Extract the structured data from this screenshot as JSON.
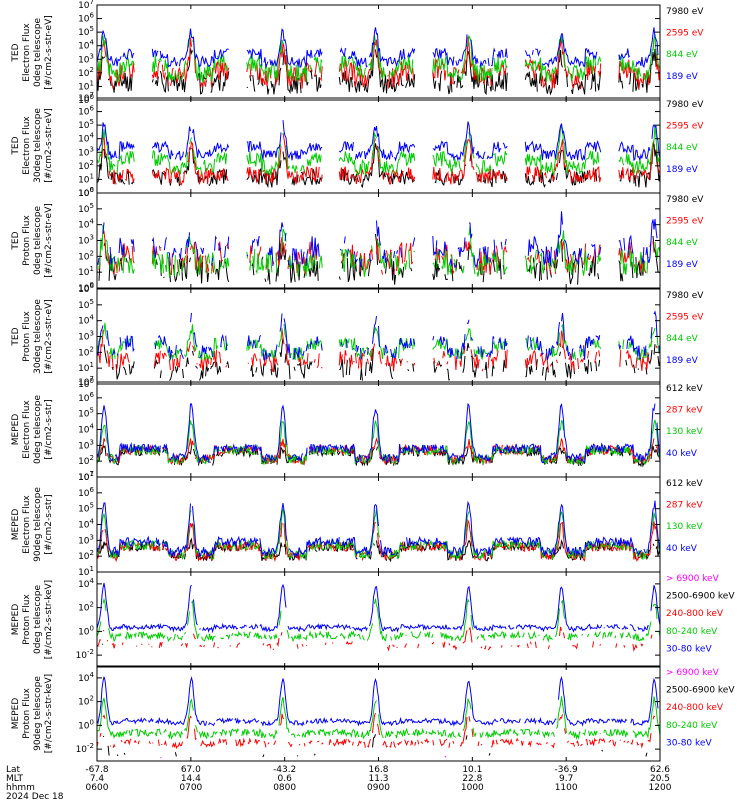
{
  "chart_data": [
    {
      "type": "line",
      "ylabel": [
        "TED",
        "Electron Flux",
        "0deg telescope",
        "[#/cm2-s-str-eV]"
      ],
      "yticks": [
        "10^0",
        "10^1",
        "10^2",
        "10^3",
        "10^4",
        "10^5",
        "10^6",
        "10^7"
      ],
      "ylim_exp": [
        0,
        7
      ],
      "log_y": true,
      "series": [
        {
          "name": "7980 eV",
          "color": "#000000",
          "seed": 11,
          "base": 1.2,
          "peak": 3.2,
          "noise": 0.8,
          "gap": 0.15
        },
        {
          "name": "2595 eV",
          "color": "#ff0000",
          "seed": 12,
          "base": 1.6,
          "peak": 4.0,
          "noise": 0.8,
          "gap": 0.1
        },
        {
          "name": "844 eV",
          "color": "#00cc00",
          "seed": 13,
          "base": 2.0,
          "peak": 4.6,
          "noise": 0.7,
          "gap": 0.05
        },
        {
          "name": "189 eV",
          "color": "#0000ff",
          "seed": 14,
          "base": 2.8,
          "peak": 5.0,
          "noise": 0.4,
          "gap": 0.05
        }
      ]
    },
    {
      "type": "line",
      "ylabel": [
        "TED",
        "Electron Flux",
        "30deg telescope",
        "[#/cm2-s-str-eV]"
      ],
      "yticks": [
        "10^0",
        "10^1",
        "10^2",
        "10^3",
        "10^4",
        "10^5",
        "10^6",
        "10^7"
      ],
      "ylim_exp": [
        0,
        7
      ],
      "log_y": true,
      "series": [
        {
          "name": "7980 eV",
          "color": "#000000",
          "seed": 21,
          "base": 1.0,
          "peak": 3.2,
          "noise": 0.6,
          "gap": 0.1
        },
        {
          "name": "2595 eV",
          "color": "#ff0000",
          "seed": 22,
          "base": 1.2,
          "peak": 3.9,
          "noise": 0.6,
          "gap": 0.08
        },
        {
          "name": "844 eV",
          "color": "#00cc00",
          "seed": 23,
          "base": 1.9,
          "peak": 4.5,
          "noise": 0.6,
          "gap": 0.05
        },
        {
          "name": "189 eV",
          "color": "#0000ff",
          "seed": 24,
          "base": 2.8,
          "peak": 5.0,
          "noise": 0.4,
          "gap": 0.03
        }
      ]
    },
    {
      "type": "line",
      "ylabel": [
        "TED",
        "Proton Flux",
        "0deg telescope",
        "[#/cm2-s-str-eV]"
      ],
      "yticks": [
        "10^0",
        "10^1",
        "10^2",
        "10^3",
        "10^4",
        "10^5",
        "10^6"
      ],
      "ylim_exp": [
        0,
        6
      ],
      "log_y": true,
      "series": [
        {
          "name": "7980 eV",
          "color": "#000000",
          "seed": 31,
          "base": 1.1,
          "peak": 2.6,
          "noise": 0.9,
          "gap": 0.3
        },
        {
          "name": "2595 eV",
          "color": "#ff0000",
          "seed": 32,
          "base": 1.6,
          "peak": 3.0,
          "noise": 0.8,
          "gap": 0.25
        },
        {
          "name": "844 eV",
          "color": "#00cc00",
          "seed": 33,
          "base": 1.5,
          "peak": 3.4,
          "noise": 0.8,
          "gap": 0.2
        },
        {
          "name": "189 eV",
          "color": "#0000ff",
          "seed": 34,
          "base": 2.0,
          "peak": 4.2,
          "noise": 0.7,
          "gap": 0.3
        }
      ]
    },
    {
      "type": "line",
      "ylabel": [
        "TED",
        "Proton Flux",
        "30deg telescope",
        "[#/cm2-s-str-eV]"
      ],
      "yticks": [
        "10^0",
        "10^1",
        "10^2",
        "10^3",
        "10^4",
        "10^5",
        "10^6"
      ],
      "ylim_exp": [
        0,
        6
      ],
      "log_y": true,
      "series": [
        {
          "name": "7980 eV",
          "color": "#000000",
          "seed": 41,
          "base": 0.8,
          "peak": 2.4,
          "noise": 0.6,
          "gap": 0.4
        },
        {
          "name": "2595 eV",
          "color": "#ff0000",
          "seed": 42,
          "base": 1.4,
          "peak": 3.0,
          "noise": 0.6,
          "gap": 0.3
        },
        {
          "name": "844 eV",
          "color": "#00cc00",
          "seed": 43,
          "base": 1.9,
          "peak": 3.6,
          "noise": 0.4,
          "gap": 0.1
        },
        {
          "name": "189 eV",
          "color": "#0000ff",
          "seed": 44,
          "base": 2.0,
          "peak": 4.2,
          "noise": 0.5,
          "gap": 0.25
        }
      ]
    },
    {
      "type": "line",
      "ylabel": [
        "MEPED",
        "Electron Flux",
        "0deg telescope",
        "[#/cm2-s-str]"
      ],
      "yticks": [
        "10^1",
        "10^2",
        "10^3",
        "10^4",
        "10^5",
        "10^6",
        "10^7"
      ],
      "ylim_exp": [
        1,
        7
      ],
      "log_y": true,
      "series": [
        {
          "name": "612 keV",
          "color": "#000000",
          "seed": 51,
          "base": 2.0,
          "peak": 2.8,
          "noise": 0.3,
          "gap": 0.1
        },
        {
          "name": "287 keV",
          "color": "#ff0000",
          "seed": 52,
          "base": 2.1,
          "peak": 3.2,
          "noise": 0.3,
          "gap": 0.05
        },
        {
          "name": "130 keV",
          "color": "#00cc00",
          "seed": 53,
          "base": 2.1,
          "peak": 4.4,
          "noise": 0.3,
          "gap": 0.05
        },
        {
          "name": "40 keV",
          "color": "#0000ff",
          "seed": 54,
          "base": 2.2,
          "peak": 5.5,
          "noise": 0.3,
          "gap": 0.05
        }
      ]
    },
    {
      "type": "line",
      "ylabel": [
        "MEPED",
        "Electron Flux",
        "90deg telescope",
        "[#/cm2-s-str]"
      ],
      "yticks": [
        "10^1",
        "10^2",
        "10^3",
        "10^4",
        "10^5",
        "10^6",
        "10^7"
      ],
      "ylim_exp": [
        1,
        7
      ],
      "log_y": true,
      "series": [
        {
          "name": "612 keV",
          "color": "#000000",
          "seed": 61,
          "base": 2.0,
          "peak": 2.8,
          "noise": 0.3,
          "gap": 0.1
        },
        {
          "name": "287 keV",
          "color": "#ff0000",
          "seed": 62,
          "base": 2.0,
          "peak": 4.0,
          "noise": 0.3,
          "gap": 0.05
        },
        {
          "name": "130 keV",
          "color": "#00cc00",
          "seed": 63,
          "base": 2.1,
          "peak": 4.8,
          "noise": 0.3,
          "gap": 0.05
        },
        {
          "name": "40 keV",
          "color": "#0000ff",
          "seed": 64,
          "base": 2.3,
          "peak": 5.3,
          "noise": 0.3,
          "gap": 0.03
        }
      ]
    },
    {
      "type": "line",
      "ylabel": [
        "MEPED",
        "Proton Flux",
        "0deg telescope",
        "[#/cm2-s-str-keV]"
      ],
      "yticks": [
        "10^-2",
        "10^0",
        "10^2",
        "10^4"
      ],
      "ylim_exp": [
        -3,
        5
      ],
      "log_y": true,
      "series": [
        {
          "name": "> 6900 keV",
          "color": "#ff00ff",
          "seed": 71,
          "base": -2.8,
          "peak": -1.8,
          "noise": 0.2,
          "gap": 0.97
        },
        {
          "name": "2500-6900 keV",
          "color": "#000000",
          "seed": 72,
          "base": -2.5,
          "peak": -0.8,
          "noise": 0.3,
          "gap": 0.93
        },
        {
          "name": "240-800 keV",
          "color": "#ff0000",
          "seed": 73,
          "base": -1.3,
          "peak": 0.2,
          "noise": 0.3,
          "gap": 0.55
        },
        {
          "name": "80-240 keV",
          "color": "#00cc00",
          "seed": 74,
          "base": -0.5,
          "peak": 2.6,
          "noise": 0.3,
          "gap": 0.2
        },
        {
          "name": "30-80 keV",
          "color": "#0000ff",
          "seed": 75,
          "base": 0.2,
          "peak": 3.9,
          "noise": 0.2,
          "gap": 0.05
        }
      ]
    },
    {
      "type": "line",
      "ylabel": [
        "MEPED",
        "Proton Flux",
        "90deg telescope",
        "[#/cm2-s-str-keV]"
      ],
      "yticks": [
        "10^-2",
        "10^0",
        "10^2",
        "10^4"
      ],
      "ylim_exp": [
        -3,
        5
      ],
      "log_y": true,
      "series": [
        {
          "name": "> 6900 keV",
          "color": "#ff00ff",
          "seed": 81,
          "base": -2.8,
          "peak": -1.6,
          "noise": 0.2,
          "gap": 0.95
        },
        {
          "name": "2500-6900 keV",
          "color": "#000000",
          "seed": 82,
          "base": -2.5,
          "peak": -0.7,
          "noise": 0.3,
          "gap": 0.85
        },
        {
          "name": "240-800 keV",
          "color": "#ff0000",
          "seed": 83,
          "base": -1.6,
          "peak": 0.9,
          "noise": 0.3,
          "gap": 0.3
        },
        {
          "name": "80-240 keV",
          "color": "#00cc00",
          "seed": 84,
          "base": -0.8,
          "peak": 2.2,
          "noise": 0.3,
          "gap": 0.1
        },
        {
          "name": "30-80 keV",
          "color": "#0000ff",
          "seed": 85,
          "base": 0.2,
          "peak": 3.9,
          "noise": 0.2,
          "gap": 0.03
        }
      ]
    }
  ],
  "x_axis": {
    "xlim_hours": [
      8.0,
      12.0
    ],
    "row_labels": [
      "Lat",
      "MLT",
      "hhmm"
    ],
    "date": "2024 Dec 18",
    "ticks": [
      {
        "hour": 8.0,
        "lat": "-67.8",
        "mlt": "7.4",
        "hhmm": "0600"
      },
      {
        "hour": 8.6667,
        "lat": "67.0",
        "mlt": "14.4",
        "hhmm": "0700"
      },
      {
        "hour": 9.3333,
        "lat": "-43.2",
        "mlt": "0.6",
        "hhmm": "0800"
      },
      {
        "hour": 10.0,
        "lat": "16.8",
        "mlt": "11.3",
        "hhmm": "0900"
      },
      {
        "hour": 10.6667,
        "lat": "10.1",
        "mlt": "22.8",
        "hhmm": "1000"
      },
      {
        "hour": 11.3333,
        "lat": "-36.9",
        "mlt": "9.7",
        "hhmm": "1100"
      },
      {
        "hour": 12.0,
        "lat": "62.6",
        "mlt": "20.5",
        "hhmm": "1200"
      }
    ],
    "peak_hours": [
      8.05,
      8.67,
      9.32,
      9.98,
      10.64,
      11.3,
      11.96
    ],
    "pass_centers_hours": [
      8.33,
      9.0,
      9.66,
      10.32,
      10.98,
      11.64
    ]
  }
}
